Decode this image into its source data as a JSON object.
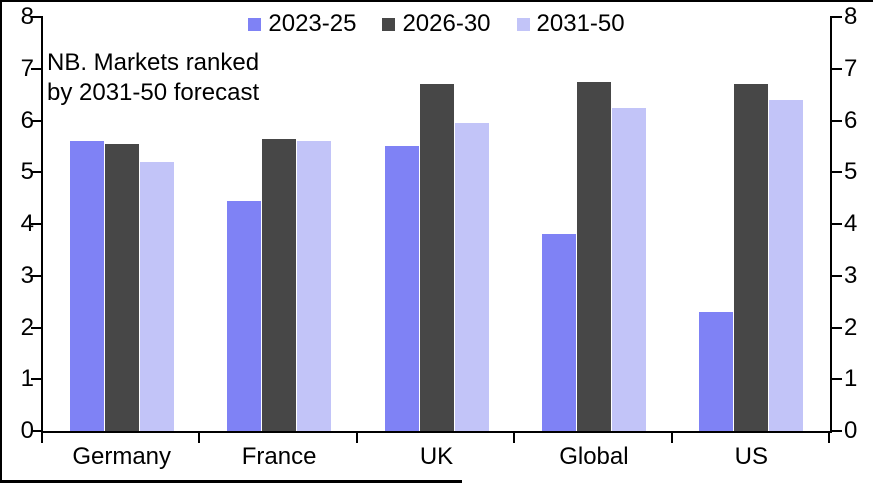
{
  "chart_data": {
    "type": "bar",
    "title": "",
    "note": "NB. Markets ranked\nby 2031-50 forecast",
    "categories": [
      "Germany",
      "France",
      "UK",
      "Global",
      "US"
    ],
    "series": [
      {
        "name": "2023-25",
        "color": "#7f82f5",
        "values": [
          5.6,
          4.45,
          5.5,
          3.8,
          2.3
        ]
      },
      {
        "name": "2026-30",
        "color": "#474747",
        "values": [
          5.55,
          5.65,
          6.7,
          6.75,
          6.7
        ]
      },
      {
        "name": "2031-50",
        "color": "#c2c4f8",
        "values": [
          5.2,
          5.6,
          5.95,
          6.25,
          6.4
        ]
      }
    ],
    "ylim": [
      0,
      8
    ],
    "yticks": [
      0,
      1,
      2,
      3,
      4,
      5,
      6,
      7,
      8
    ],
    "axis_sides": "left and right, mirrored",
    "legend_position": "top-center",
    "grid": "off",
    "frame_color": "#000000",
    "background_color": "#ffffff"
  }
}
